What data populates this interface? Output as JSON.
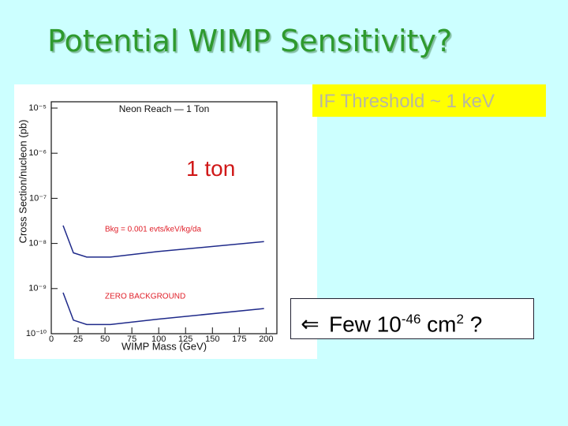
{
  "slide": {
    "title": "Potential WIMP Sensitivity?",
    "threshold": "IF Threshold ~ 1 keV",
    "mass": "1 ton",
    "callout": [
      "Few 10",
      "-46",
      " cm",
      "2",
      " ?"
    ]
  },
  "chart_data": {
    "type": "line",
    "title": "Neon Reach — 1 Ton",
    "x_label": "WIMP Mass (GeV)",
    "y_label": "Cross Section/nucleon (pb)",
    "x": [
      11,
      20.6,
      33,
      55,
      99,
      198
    ],
    "series": [
      {
        "name": "Bkg = 0.001 evts/keV/kg/da",
        "color": "#1f2a8a",
        "label_color": "#e0202a",
        "values": [
          2.5e-08,
          6.2e-09,
          5e-09,
          5e-09,
          6.6e-09,
          1.1e-08
        ]
      },
      {
        "name": "ZERO BACKGROUND",
        "color": "#1f2a8a",
        "label_color": "#e0202a",
        "values": [
          8.1e-10,
          2e-10,
          1.6e-10,
          1.6e-10,
          2.1e-10,
          3.6e-10
        ]
      }
    ],
    "xlim": [
      0,
      210
    ],
    "xticks": [
      0,
      25,
      50,
      75,
      100,
      125,
      150,
      175,
      200
    ],
    "ylim": [
      1e-10,
      1e-05
    ],
    "log_y": true,
    "yticks": [
      {
        "value": 1e-05,
        "label": "10⁻⁵"
      },
      {
        "value": 1e-06,
        "label": "10⁻⁶"
      },
      {
        "value": 1e-07,
        "label": "10⁻⁷"
      },
      {
        "value": 1e-08,
        "label": "10⁻⁸"
      },
      {
        "value": 1e-09,
        "label": "10⁻⁹"
      },
      {
        "value": 1e-10,
        "label": "10⁻¹⁰"
      }
    ]
  }
}
